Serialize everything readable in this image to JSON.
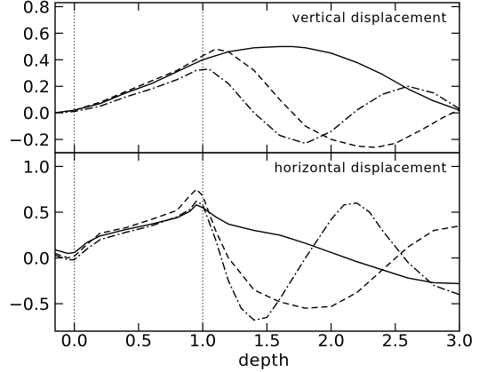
{
  "chart_data": {
    "type": "line",
    "xlabel": "depth",
    "xlim": [
      -0.15,
      3.0
    ],
    "x_ticks": [
      "0.0",
      "0.5",
      "1.0",
      "1.5",
      "2.0",
      "2.5",
      "3.0"
    ],
    "x_tick_values": [
      0.0,
      0.5,
      1.0,
      1.5,
      2.0,
      2.5,
      3.0
    ],
    "vlines": [
      0.0,
      1.0
    ],
    "panels": [
      {
        "id": "vertical",
        "title": "vertical displacement",
        "ylim": [
          -0.3,
          0.83
        ],
        "y_ticks": [
          "0.8",
          "0.6",
          "0.4",
          "0.2",
          "0.0",
          "−0.2"
        ],
        "y_tick_values": [
          0.8,
          0.6,
          0.4,
          0.2,
          0.0,
          -0.2
        ],
        "series": [
          {
            "style": "solid",
            "x": [
              -0.15,
              0.0,
              0.2,
              0.4,
              0.6,
              0.8,
              1.0,
              1.2,
              1.4,
              1.6,
              1.7,
              1.8,
              2.0,
              2.2,
              2.4,
              2.6,
              2.8,
              3.0
            ],
            "y": [
              0.0,
              0.02,
              0.07,
              0.15,
              0.22,
              0.31,
              0.4,
              0.46,
              0.49,
              0.5,
              0.5,
              0.49,
              0.45,
              0.38,
              0.29,
              0.18,
              0.09,
              0.02
            ]
          },
          {
            "style": "dashed",
            "x": [
              -0.15,
              0.0,
              0.2,
              0.4,
              0.6,
              0.8,
              1.0,
              1.1,
              1.2,
              1.4,
              1.6,
              1.8,
              2.0,
              2.2,
              2.35,
              2.5,
              2.7,
              2.9,
              3.0
            ],
            "y": [
              0.0,
              0.02,
              0.08,
              0.16,
              0.24,
              0.32,
              0.43,
              0.48,
              0.46,
              0.32,
              0.1,
              -0.1,
              -0.2,
              -0.25,
              -0.26,
              -0.23,
              -0.13,
              -0.02,
              0.02
            ]
          },
          {
            "style": "dashdot",
            "x": [
              -0.15,
              0.0,
              0.2,
              0.4,
              0.6,
              0.8,
              0.95,
              1.05,
              1.2,
              1.4,
              1.6,
              1.8,
              2.0,
              2.2,
              2.4,
              2.6,
              2.8,
              3.0
            ],
            "y": [
              0.0,
              0.01,
              0.05,
              0.12,
              0.18,
              0.25,
              0.32,
              0.33,
              0.22,
              0.0,
              -0.17,
              -0.23,
              -0.14,
              0.02,
              0.14,
              0.2,
              0.15,
              0.03
            ]
          }
        ]
      },
      {
        "id": "horizontal",
        "title": "horizontal displacement",
        "ylim": [
          -0.8,
          1.15
        ],
        "y_ticks": [
          "1.0",
          "0.5",
          "0.0",
          "−0.5"
        ],
        "y_tick_values": [
          1.0,
          0.5,
          0.0,
          -0.5
        ],
        "series": [
          {
            "style": "solid",
            "x": [
              -0.15,
              -0.05,
              0.0,
              0.1,
              0.2,
              0.4,
              0.6,
              0.8,
              0.9,
              0.95,
              1.0,
              1.1,
              1.2,
              1.4,
              1.6,
              1.8,
              2.0,
              2.2,
              2.4,
              2.6,
              2.8,
              3.0
            ],
            "y": [
              0.09,
              0.05,
              0.06,
              0.17,
              0.24,
              0.31,
              0.37,
              0.44,
              0.51,
              0.58,
              0.55,
              0.45,
              0.37,
              0.3,
              0.25,
              0.16,
              0.06,
              -0.04,
              -0.13,
              -0.22,
              -0.27,
              -0.28
            ]
          },
          {
            "style": "dashed",
            "x": [
              -0.15,
              -0.05,
              0.0,
              0.1,
              0.2,
              0.4,
              0.6,
              0.8,
              0.9,
              0.95,
              1.0,
              1.1,
              1.2,
              1.4,
              1.6,
              1.8,
              2.0,
              2.2,
              2.4,
              2.6,
              2.8,
              3.0
            ],
            "y": [
              0.05,
              0.0,
              0.02,
              0.15,
              0.27,
              0.33,
              0.42,
              0.52,
              0.68,
              0.75,
              0.68,
              0.3,
              0.0,
              -0.35,
              -0.48,
              -0.55,
              -0.53,
              -0.38,
              -0.13,
              0.12,
              0.3,
              0.35
            ]
          },
          {
            "style": "dashdot",
            "x": [
              -0.15,
              -0.05,
              0.0,
              0.1,
              0.2,
              0.4,
              0.6,
              0.8,
              0.9,
              0.95,
              1.0,
              1.1,
              1.2,
              1.3,
              1.4,
              1.5,
              1.6,
              1.8,
              2.0,
              2.1,
              2.2,
              2.3,
              2.4,
              2.6,
              2.8,
              3.0
            ],
            "y": [
              0.03,
              -0.02,
              -0.02,
              0.1,
              0.2,
              0.28,
              0.35,
              0.45,
              0.53,
              0.62,
              0.58,
              0.2,
              -0.25,
              -0.55,
              -0.68,
              -0.65,
              -0.45,
              0.0,
              0.42,
              0.58,
              0.6,
              0.5,
              0.3,
              -0.05,
              -0.3,
              -0.4
            ]
          }
        ]
      }
    ]
  }
}
